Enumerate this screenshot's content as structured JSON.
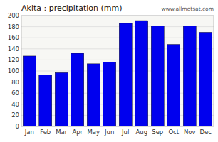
{
  "chart_data": {
    "type": "bar",
    "title": "Akita : precipitation (mm)",
    "annotation": "www.allmetsat.com",
    "categories": [
      "Jan",
      "Feb",
      "Mar",
      "Apr",
      "May",
      "Jun",
      "Jul",
      "Aug",
      "Sep",
      "Oct",
      "Nov",
      "Dec"
    ],
    "values": [
      127,
      93,
      97,
      132,
      113,
      116,
      186,
      191,
      181,
      148,
      181,
      170
    ],
    "color": "#0000EE",
    "ylim": [
      0,
      200
    ],
    "yticks": [
      0,
      20,
      40,
      60,
      80,
      100,
      120,
      140,
      160,
      180,
      200
    ],
    "grid": true
  }
}
